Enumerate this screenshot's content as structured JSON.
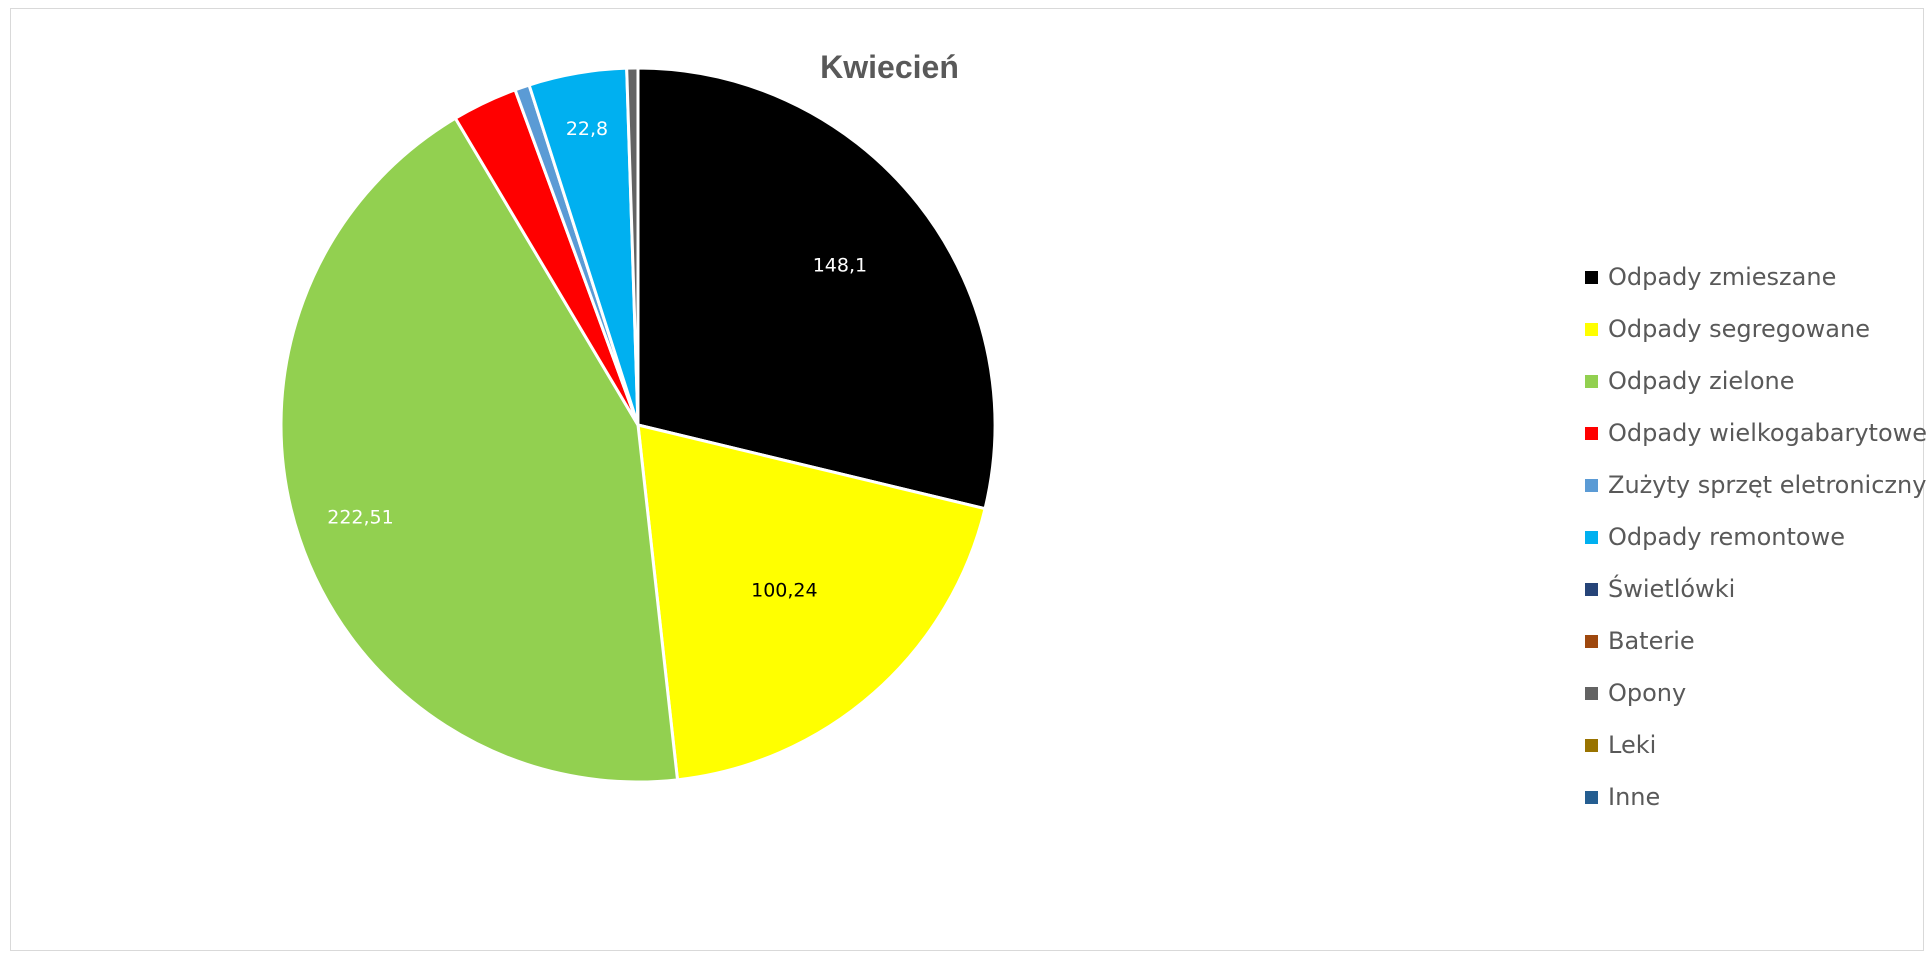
{
  "chart_data": {
    "type": "pie",
    "title": "Kwiecień",
    "categories": [
      "Odpady zmieszane",
      "Odpady segregowane",
      "Odpady zielone",
      "Odpady wielkogabarytowe",
      "Zużyty sprzęt eletroniczny",
      "Odpady remontowe",
      "Świetlówki",
      "Baterie",
      "Opony",
      "Leki",
      "Inne"
    ],
    "values": [
      148.1,
      100.24,
      222.51,
      15.2,
      3.4,
      22.8,
      0,
      0,
      2.6,
      0,
      0
    ],
    "data_labels": [
      "148,1",
      "100,24",
      "222,51",
      "",
      "",
      "22,8",
      "",
      "",
      "",
      "",
      ""
    ],
    "colors": [
      "#000000",
      "#ffff00",
      "#92d050",
      "#ff0000",
      "#5b9bd5",
      "#00b0f0",
      "#264478",
      "#9e480e",
      "#636363",
      "#997300",
      "#255e91"
    ],
    "label_colors": [
      "#ffffff",
      "#000000",
      "#ffffff",
      "#ffffff",
      "#ffffff",
      "#ffffff",
      "#ffffff",
      "#ffffff",
      "#ffffff",
      "#ffffff",
      "#ffffff"
    ],
    "start_angle_deg": 0,
    "direction": "clockwise",
    "legend_position": "right"
  }
}
